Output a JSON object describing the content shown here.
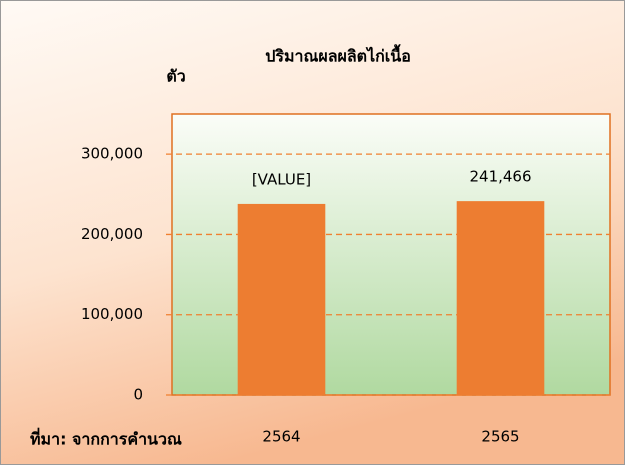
{
  "chart_data": {
    "type": "bar",
    "title": "ปริมาณผลผลิตไก่เนื้อ",
    "y_label": "ตัว",
    "source": "ที่มา: จากการคำนวณ",
    "categories": [
      "2564",
      "2565"
    ],
    "values": [
      238000,
      241466
    ],
    "value_labels": [
      "[VALUE]",
      "241,466"
    ],
    "color": "#ed7d31",
    "ylim": [
      0,
      350000
    ],
    "yticks": [
      0,
      {
        "value": 100000,
        "label": "100,000"
      },
      {
        "value": 200000,
        "label": "200,000"
      },
      {
        "value": 300000,
        "label": "300,000"
      }
    ],
    "grid": true
  }
}
